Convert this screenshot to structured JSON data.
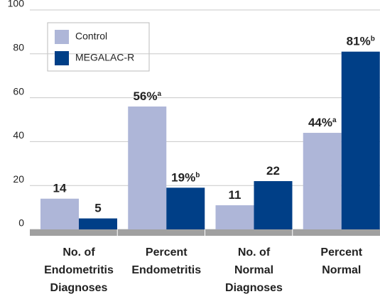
{
  "chart_data": {
    "type": "bar",
    "categories": [
      [
        "No. of",
        "Endometritis",
        "Diagnoses"
      ],
      [
        "Percent",
        "Endometritis"
      ],
      [
        "No. of",
        "Normal",
        "Diagnoses"
      ],
      [
        "Percent",
        "Normal"
      ]
    ],
    "series": [
      {
        "name": "Control",
        "color": "#aeb6d8",
        "values": [
          14,
          56,
          11,
          44
        ],
        "value_labels": [
          "14",
          "56%",
          "11",
          "44%"
        ],
        "value_label_notes": [
          null,
          "a",
          null,
          "a"
        ]
      },
      {
        "name": "MEGALAC-R",
        "color": "#003f87",
        "values": [
          5,
          19,
          22,
          81
        ],
        "value_labels": [
          "5",
          "19%",
          "22",
          "81%"
        ],
        "value_label_notes": [
          null,
          "b",
          null,
          "b"
        ]
      }
    ],
    "ylim": [
      0,
      100
    ],
    "yticks": [
      0,
      20,
      40,
      60,
      80,
      100
    ],
    "grid": true,
    "legend": "upper left"
  }
}
